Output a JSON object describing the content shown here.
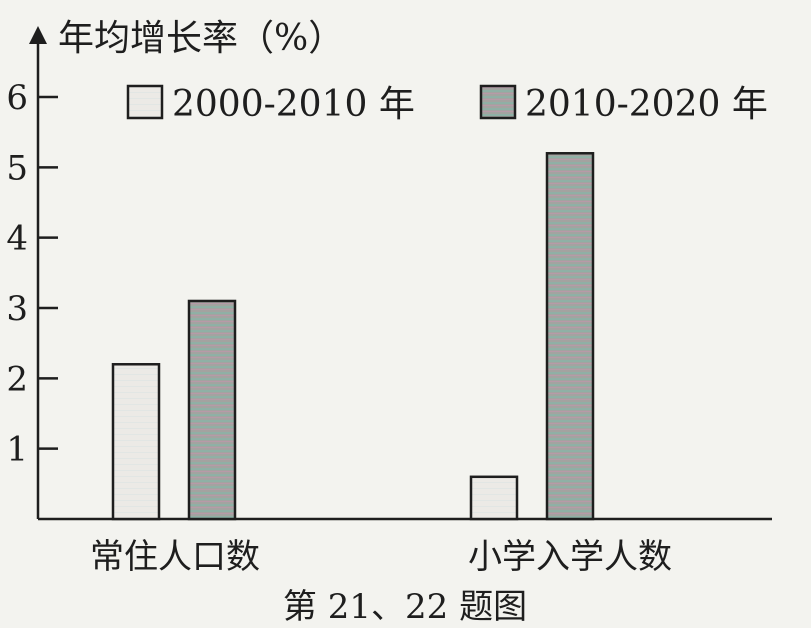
{
  "chart_data": {
    "type": "bar",
    "ylabel": "年均增长率（%）",
    "categories": [
      "常住人口数",
      "小学入学人数"
    ],
    "series": [
      {
        "name": "2000-2010 年",
        "values": [
          2.2,
          0.6
        ]
      },
      {
        "name": "2010-2020 年",
        "values": [
          3.1,
          5.2
        ]
      }
    ],
    "ylim": [
      0,
      6
    ],
    "yticks": [
      1,
      2,
      3,
      4,
      5,
      6
    ],
    "grid": false,
    "legend": "top",
    "caption": "第 21、22 题图"
  },
  "colors": {
    "background": "#f3f3ef",
    "axis": "#1e1e1e",
    "series_1_fill": "#eceae6",
    "series_2_fill": "#a3a3a0",
    "series_2_stripe": "#8fb0a5"
  }
}
